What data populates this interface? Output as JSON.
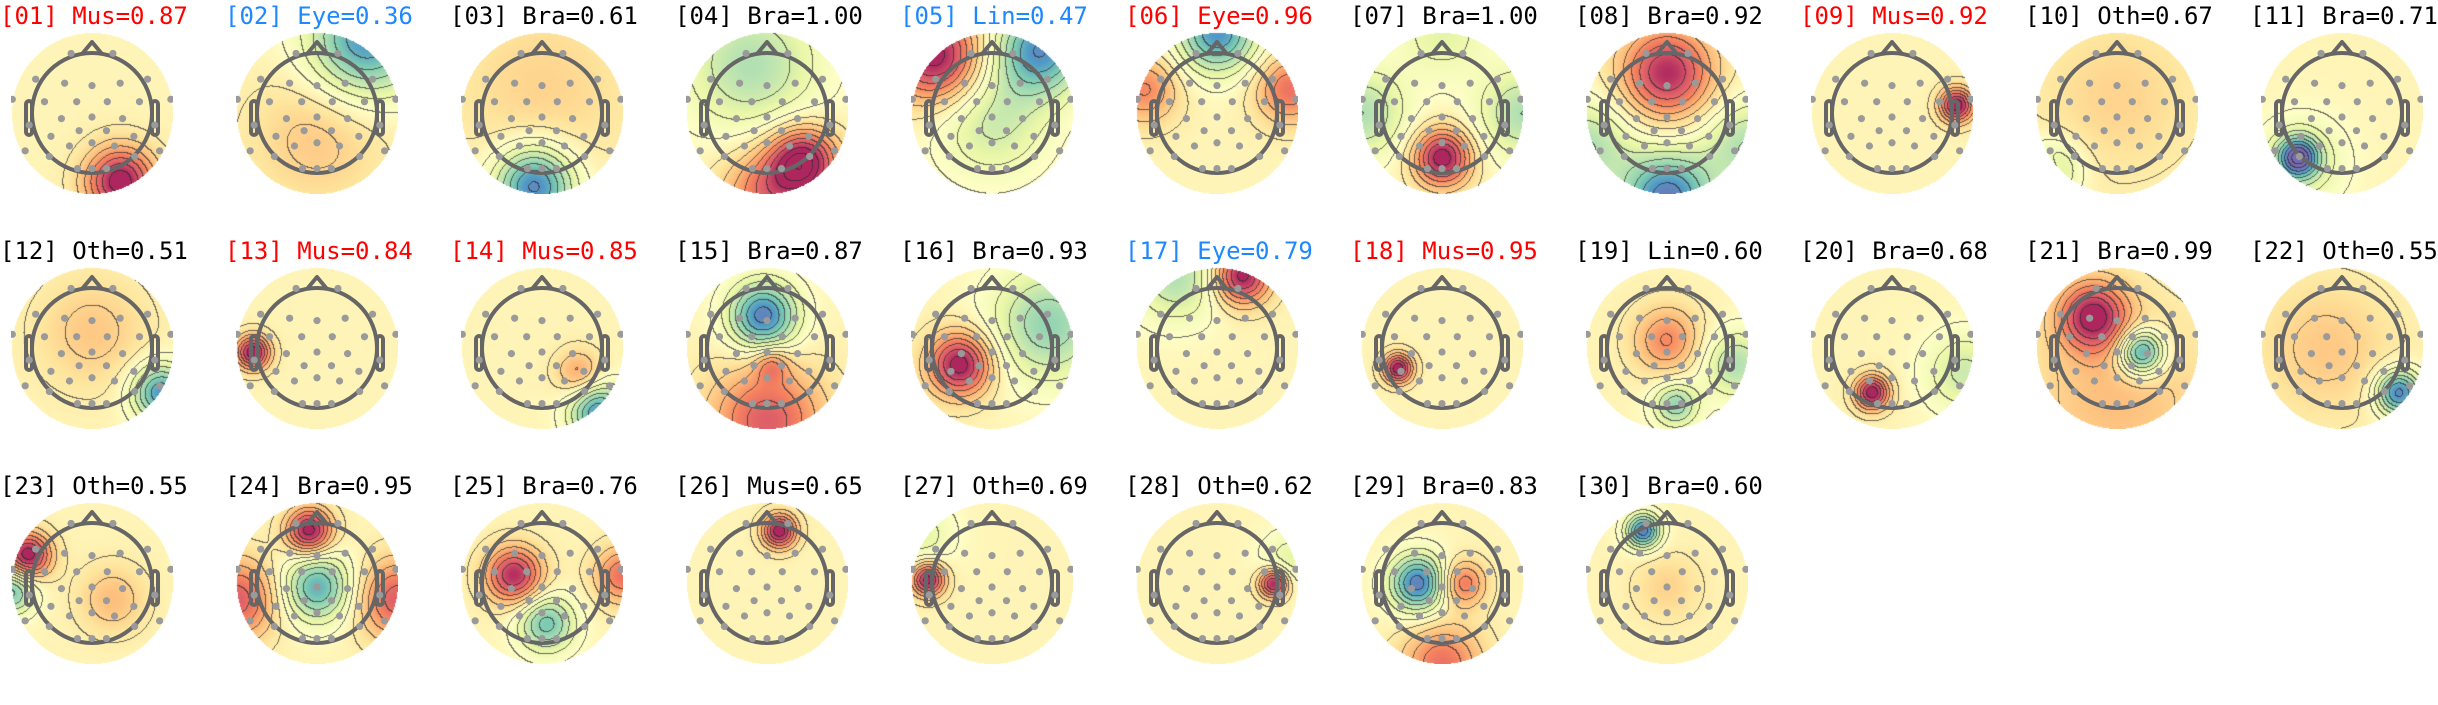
{
  "chart_data": {
    "type": "heatmap",
    "colormap": "Spectral_r",
    "components": [
      {
        "title": "[01] Mus=0.87",
        "color": "#ff0000"
      },
      {
        "title": "[02] Eye=0.36",
        "color": "#1e88ff"
      },
      {
        "title": "[03] Bra=0.61",
        "color": "#000000"
      },
      {
        "title": "[04] Bra=1.00",
        "color": "#000000"
      },
      {
        "title": "[05] Lin=0.47",
        "color": "#1e88ff"
      },
      {
        "title": "[06] Eye=0.96",
        "color": "#ff0000"
      },
      {
        "title": "[07] Bra=1.00",
        "color": "#000000"
      },
      {
        "title": "[08] Bra=0.92",
        "color": "#000000"
      },
      {
        "title": "[09] Mus=0.92",
        "color": "#ff0000"
      },
      {
        "title": "[10] Oth=0.67",
        "color": "#000000"
      },
      {
        "title": "[11] Bra=0.71",
        "color": "#000000"
      },
      {
        "title": "[12] Oth=0.51",
        "color": "#000000"
      },
      {
        "title": "[13] Mus=0.84",
        "color": "#ff0000"
      },
      {
        "title": "[14] Mus=0.85",
        "color": "#ff0000"
      },
      {
        "title": "[15] Bra=0.87",
        "color": "#000000"
      },
      {
        "title": "[16] Bra=0.93",
        "color": "#000000"
      },
      {
        "title": "[17] Eye=0.79",
        "color": "#1e88ff"
      },
      {
        "title": "[18] Mus=0.95",
        "color": "#ff0000"
      },
      {
        "title": "[19] Lin=0.60",
        "color": "#000000"
      },
      {
        "title": "[20] Bra=0.68",
        "color": "#000000"
      },
      {
        "title": "[21] Bra=0.99",
        "color": "#000000"
      },
      {
        "title": "[22] Oth=0.55",
        "color": "#000000"
      },
      {
        "title": "[23] Oth=0.55",
        "color": "#000000"
      },
      {
        "title": "[24] Bra=0.95",
        "color": "#000000"
      },
      {
        "title": "[25] Bra=0.76",
        "color": "#000000"
      },
      {
        "title": "[26] Mus=0.65",
        "color": "#000000"
      },
      {
        "title": "[27] Oth=0.69",
        "color": "#000000"
      },
      {
        "title": "[28] Oth=0.62",
        "color": "#000000"
      },
      {
        "title": "[29] Bra=0.83",
        "color": "#000000"
      },
      {
        "title": "[30] Bra=0.60",
        "color": "#000000"
      }
    ]
  }
}
